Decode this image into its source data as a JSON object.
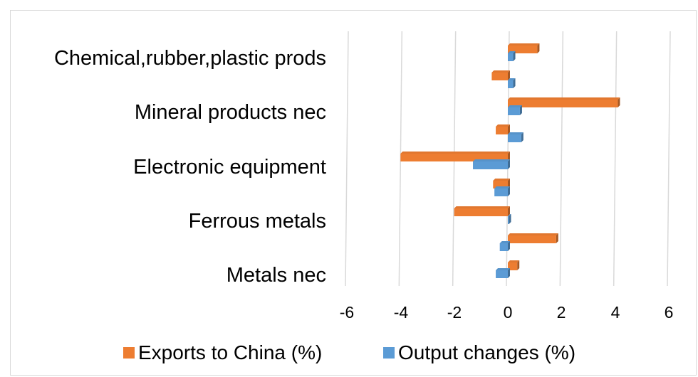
{
  "chart_data": {
    "type": "bar",
    "orientation": "horizontal",
    "categories": [
      "Chemical,rubber,plastic prods",
      "Mineral products nec",
      "Electronic equipment",
      "Ferrous metals",
      "Metals nec"
    ],
    "groups": [
      {
        "label": "Chemical,rubber,plastic prods",
        "exports": [
          1.1,
          -0.6
        ],
        "output": [
          0.2,
          0.2
        ]
      },
      {
        "label": "Mineral products nec",
        "exports": [
          4.1,
          -0.45
        ],
        "output": [
          0.45,
          0.5
        ]
      },
      {
        "label": "Electronic equipment",
        "exports": [
          -4.0,
          -0.55
        ],
        "output": [
          -1.3,
          -0.5
        ]
      },
      {
        "label": "Ferrous metals",
        "exports": [
          -2.0,
          1.8
        ],
        "output": [
          0.0,
          -0.3
        ]
      },
      {
        "label": "Metals nec",
        "exports": [
          0.35
        ],
        "output": [
          -0.45
        ]
      }
    ],
    "series": [
      {
        "name": "Exports to China (%)",
        "color": "#ed7d31"
      },
      {
        "name": "Output changes (%)",
        "color": "#5b9bd5"
      }
    ],
    "xlim": [
      -6,
      6
    ],
    "xticks": [
      "-6",
      "-4",
      "-2",
      "0",
      "2",
      "4",
      "6"
    ],
    "grid": true,
    "legend": "bottom"
  }
}
